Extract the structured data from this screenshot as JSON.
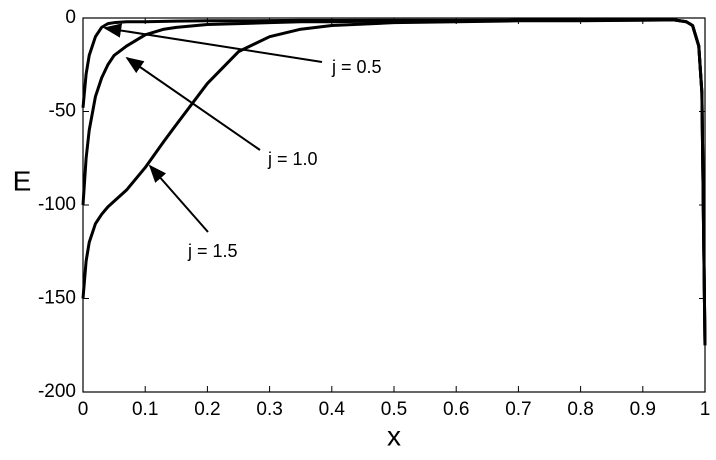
{
  "chart_data": {
    "type": "line",
    "xlabel": "x",
    "ylabel": "E",
    "x": [
      0,
      0.005,
      0.01,
      0.02,
      0.03,
      0.04,
      0.05,
      0.07,
      0.1,
      0.13,
      0.15,
      0.2,
      0.25,
      0.3,
      0.35,
      0.4,
      0.5,
      0.6,
      0.7,
      0.8,
      0.9,
      0.95,
      0.97,
      0.98,
      0.99,
      0.995,
      1
    ],
    "series": [
      {
        "name": "j = 0.5",
        "color": "#000000",
        "values": [
          -48,
          -30,
          -20,
          -10,
          -5,
          -3,
          -2.5,
          -2,
          -2,
          -1.8,
          -1.7,
          -1.5,
          -1.5,
          -1.4,
          -1.3,
          -1.3,
          -1.2,
          -1.2,
          -1.1,
          -1.1,
          -1,
          -1,
          -2,
          -4,
          -15,
          -40,
          -175
        ]
      },
      {
        "name": "j = 1.0",
        "color": "#000000",
        "values": [
          -100,
          -75,
          -60,
          -42,
          -32,
          -25,
          -20,
          -15,
          -9,
          -6,
          -5,
          -3.5,
          -3,
          -2.5,
          -2,
          -2,
          -1.5,
          -1.5,
          -1.3,
          -1.2,
          -1.1,
          -1,
          -2,
          -4,
          -15,
          -40,
          -175
        ]
      },
      {
        "name": "j = 1.5",
        "color": "#000000",
        "values": [
          -150,
          -130,
          -120,
          -110,
          -105,
          -101,
          -98,
          -92,
          -80,
          -66,
          -57,
          -35,
          -18,
          -10,
          -6,
          -4,
          -2.5,
          -2,
          -1.5,
          -1.5,
          -1.2,
          -1,
          -2,
          -4,
          -15,
          -40,
          -175
        ]
      }
    ],
    "xlim": [
      0,
      1
    ],
    "ylim": [
      -200,
      0
    ],
    "xticks": [
      0,
      0.1,
      0.2,
      0.3,
      0.4,
      0.5,
      0.6,
      0.7,
      0.8,
      0.9,
      1
    ],
    "yticks": [
      -200,
      -150,
      -100,
      -50,
      0
    ]
  }
}
